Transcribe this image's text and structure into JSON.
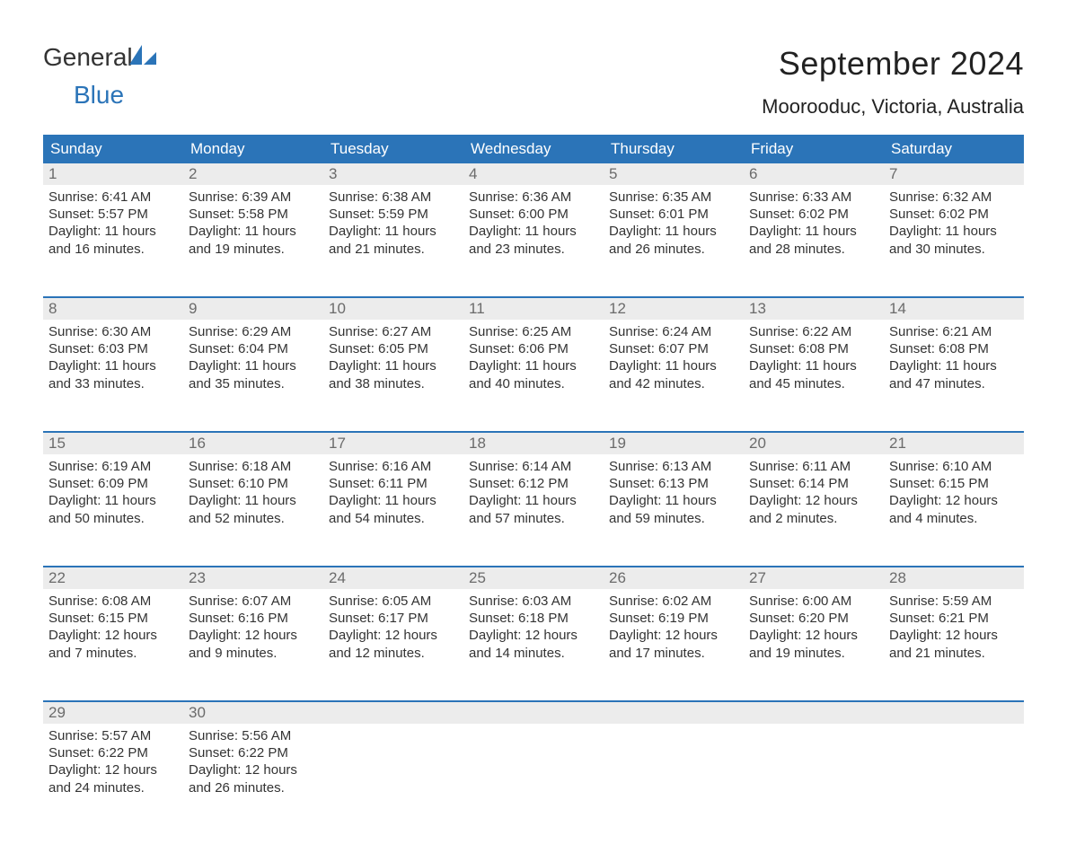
{
  "brand": {
    "part1": "General",
    "part2": "Blue"
  },
  "title": "September 2024",
  "location": "Moorooduc, Victoria, Australia",
  "colors": {
    "header_bg": "#2b74b8",
    "header_text": "#ffffff",
    "daynum_bg": "#ececec",
    "daynum_text": "#6b6b6b",
    "body_text": "#333333",
    "rule": "#2b74b8",
    "page_bg": "#ffffff"
  },
  "typography": {
    "title_fontsize": 36,
    "location_fontsize": 22,
    "dow_fontsize": 17,
    "daynum_fontsize": 17,
    "body_fontsize": 15
  },
  "days_of_week": [
    "Sunday",
    "Monday",
    "Tuesday",
    "Wednesday",
    "Thursday",
    "Friday",
    "Saturday"
  ],
  "weeks": [
    [
      {
        "num": "1",
        "sunrise": "6:41 AM",
        "sunset": "5:57 PM",
        "daylight": "11 hours and 16 minutes."
      },
      {
        "num": "2",
        "sunrise": "6:39 AM",
        "sunset": "5:58 PM",
        "daylight": "11 hours and 19 minutes."
      },
      {
        "num": "3",
        "sunrise": "6:38 AM",
        "sunset": "5:59 PM",
        "daylight": "11 hours and 21 minutes."
      },
      {
        "num": "4",
        "sunrise": "6:36 AM",
        "sunset": "6:00 PM",
        "daylight": "11 hours and 23 minutes."
      },
      {
        "num": "5",
        "sunrise": "6:35 AM",
        "sunset": "6:01 PM",
        "daylight": "11 hours and 26 minutes."
      },
      {
        "num": "6",
        "sunrise": "6:33 AM",
        "sunset": "6:02 PM",
        "daylight": "11 hours and 28 minutes."
      },
      {
        "num": "7",
        "sunrise": "6:32 AM",
        "sunset": "6:02 PM",
        "daylight": "11 hours and 30 minutes."
      }
    ],
    [
      {
        "num": "8",
        "sunrise": "6:30 AM",
        "sunset": "6:03 PM",
        "daylight": "11 hours and 33 minutes."
      },
      {
        "num": "9",
        "sunrise": "6:29 AM",
        "sunset": "6:04 PM",
        "daylight": "11 hours and 35 minutes."
      },
      {
        "num": "10",
        "sunrise": "6:27 AM",
        "sunset": "6:05 PM",
        "daylight": "11 hours and 38 minutes."
      },
      {
        "num": "11",
        "sunrise": "6:25 AM",
        "sunset": "6:06 PM",
        "daylight": "11 hours and 40 minutes."
      },
      {
        "num": "12",
        "sunrise": "6:24 AM",
        "sunset": "6:07 PM",
        "daylight": "11 hours and 42 minutes."
      },
      {
        "num": "13",
        "sunrise": "6:22 AM",
        "sunset": "6:08 PM",
        "daylight": "11 hours and 45 minutes."
      },
      {
        "num": "14",
        "sunrise": "6:21 AM",
        "sunset": "6:08 PM",
        "daylight": "11 hours and 47 minutes."
      }
    ],
    [
      {
        "num": "15",
        "sunrise": "6:19 AM",
        "sunset": "6:09 PM",
        "daylight": "11 hours and 50 minutes."
      },
      {
        "num": "16",
        "sunrise": "6:18 AM",
        "sunset": "6:10 PM",
        "daylight": "11 hours and 52 minutes."
      },
      {
        "num": "17",
        "sunrise": "6:16 AM",
        "sunset": "6:11 PM",
        "daylight": "11 hours and 54 minutes."
      },
      {
        "num": "18",
        "sunrise": "6:14 AM",
        "sunset": "6:12 PM",
        "daylight": "11 hours and 57 minutes."
      },
      {
        "num": "19",
        "sunrise": "6:13 AM",
        "sunset": "6:13 PM",
        "daylight": "11 hours and 59 minutes."
      },
      {
        "num": "20",
        "sunrise": "6:11 AM",
        "sunset": "6:14 PM",
        "daylight": "12 hours and 2 minutes."
      },
      {
        "num": "21",
        "sunrise": "6:10 AM",
        "sunset": "6:15 PM",
        "daylight": "12 hours and 4 minutes."
      }
    ],
    [
      {
        "num": "22",
        "sunrise": "6:08 AM",
        "sunset": "6:15 PM",
        "daylight": "12 hours and 7 minutes."
      },
      {
        "num": "23",
        "sunrise": "6:07 AM",
        "sunset": "6:16 PM",
        "daylight": "12 hours and 9 minutes."
      },
      {
        "num": "24",
        "sunrise": "6:05 AM",
        "sunset": "6:17 PM",
        "daylight": "12 hours and 12 minutes."
      },
      {
        "num": "25",
        "sunrise": "6:03 AM",
        "sunset": "6:18 PM",
        "daylight": "12 hours and 14 minutes."
      },
      {
        "num": "26",
        "sunrise": "6:02 AM",
        "sunset": "6:19 PM",
        "daylight": "12 hours and 17 minutes."
      },
      {
        "num": "27",
        "sunrise": "6:00 AM",
        "sunset": "6:20 PM",
        "daylight": "12 hours and 19 minutes."
      },
      {
        "num": "28",
        "sunrise": "5:59 AM",
        "sunset": "6:21 PM",
        "daylight": "12 hours and 21 minutes."
      }
    ],
    [
      {
        "num": "29",
        "sunrise": "5:57 AM",
        "sunset": "6:22 PM",
        "daylight": "12 hours and 24 minutes."
      },
      {
        "num": "30",
        "sunrise": "5:56 AM",
        "sunset": "6:22 PM",
        "daylight": "12 hours and 26 minutes."
      },
      {
        "empty": true
      },
      {
        "empty": true
      },
      {
        "empty": true
      },
      {
        "empty": true
      },
      {
        "empty": true
      }
    ]
  ],
  "labels": {
    "sunrise_prefix": "Sunrise: ",
    "sunset_prefix": "Sunset: ",
    "daylight_prefix": "Daylight: "
  }
}
